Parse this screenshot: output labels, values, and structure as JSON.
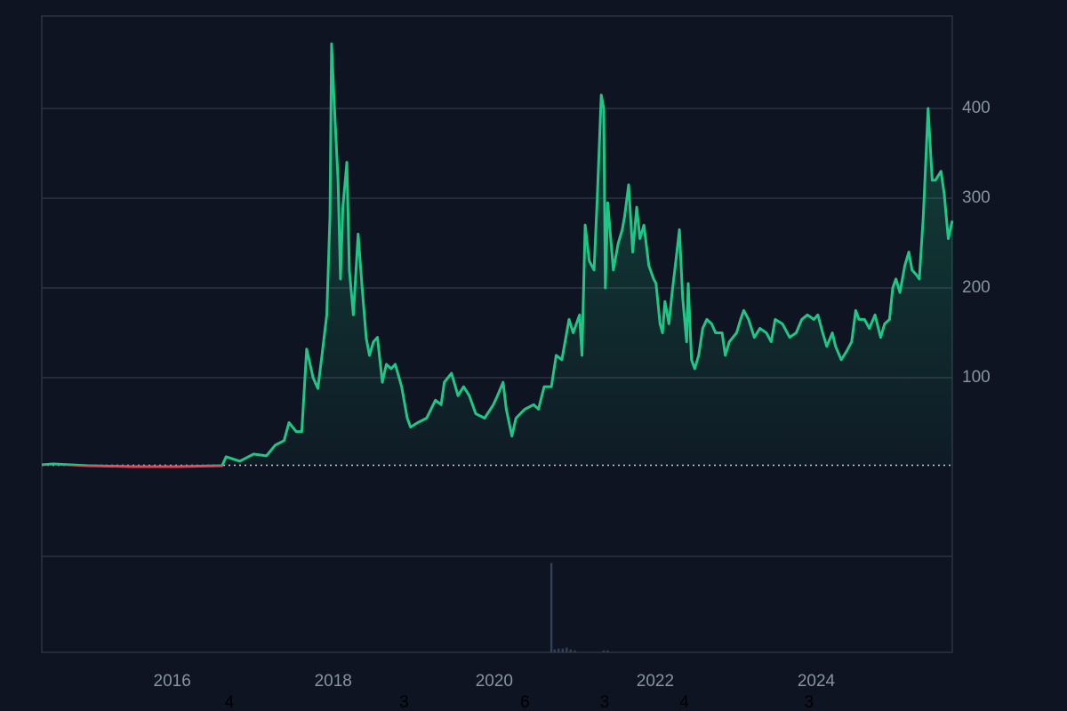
{
  "chart_data": {
    "type": "baseline-line",
    "x": [
      2014.38,
      2014.52,
      2014.96,
      2015.51,
      2016.07,
      2016.62,
      2016.67,
      2016.84,
      2017.01,
      2017.17,
      2017.28,
      2017.39,
      2017.45,
      2017.54,
      2017.61,
      2017.67,
      2017.75,
      2017.81,
      2017.86,
      2017.92,
      2017.96,
      2017.98,
      2018.01,
      2018.06,
      2018.09,
      2018.12,
      2018.17,
      2018.2,
      2018.25,
      2018.31,
      2018.36,
      2018.41,
      2018.45,
      2018.5,
      2018.55,
      2018.61,
      2018.66,
      2018.72,
      2018.77,
      2018.85,
      2018.92,
      2018.96,
      2019.05,
      2019.16,
      2019.27,
      2019.34,
      2019.38,
      2019.47,
      2019.55,
      2019.62,
      2019.69,
      2019.77,
      2019.88,
      2019.99,
      2020.04,
      2020.11,
      2020.15,
      2020.22,
      2020.27,
      2020.38,
      2020.49,
      2020.55,
      2020.62,
      2020.71,
      2020.77,
      2020.84,
      2020.93,
      2020.98,
      2021.06,
      2021.09,
      2021.13,
      2021.18,
      2021.24,
      2021.28,
      2021.33,
      2021.36,
      2021.38,
      2021.41,
      2021.48,
      2021.54,
      2021.59,
      2021.62,
      2021.67,
      2021.72,
      2021.77,
      2021.81,
      2021.86,
      2021.92,
      2021.98,
      2022.01,
      2022.06,
      2022.09,
      2022.12,
      2022.17,
      2022.21,
      2022.25,
      2022.3,
      2022.34,
      2022.39,
      2022.41,
      2022.45,
      2022.49,
      2022.54,
      2022.59,
      2022.64,
      2022.7,
      2022.75,
      2022.83,
      2022.87,
      2022.92,
      2023.01,
      2023.06,
      2023.1,
      2023.16,
      2023.23,
      2023.3,
      2023.38,
      2023.44,
      2023.49,
      2023.58,
      2023.67,
      2023.75,
      2023.82,
      2023.89,
      2023.97,
      2024.02,
      2024.08,
      2024.13,
      2024.2,
      2024.24,
      2024.31,
      2024.38,
      2024.44,
      2024.49,
      2024.53,
      2024.6,
      2024.66,
      2024.73,
      2024.8,
      2024.85,
      2024.91,
      2024.95,
      2024.99,
      2025.04,
      2025.1,
      2025.15,
      2025.19,
      2025.24,
      2025.28,
      2025.33,
      2025.39,
      2025.44,
      2025.48,
      2025.55,
      2025.59,
      2025.64,
      2025.69
    ],
    "values": [
      3,
      4,
      2,
      1,
      1,
      2,
      12,
      7,
      15,
      13,
      25,
      30,
      50,
      40,
      40,
      132,
      100,
      88,
      125,
      170,
      280,
      472,
      410,
      320,
      210,
      290,
      340,
      220,
      170,
      260,
      200,
      144,
      125,
      140,
      145,
      95,
      115,
      110,
      115,
      90,
      55,
      45,
      50,
      55,
      75,
      70,
      95,
      105,
      80,
      90,
      80,
      60,
      55,
      70,
      80,
      95,
      65,
      35,
      55,
      65,
      70,
      65,
      90,
      90,
      125,
      120,
      165,
      150,
      170,
      125,
      270,
      230,
      220,
      300,
      415,
      400,
      200,
      295,
      220,
      250,
      265,
      280,
      315,
      240,
      290,
      255,
      270,
      225,
      210,
      205,
      160,
      150,
      185,
      160,
      195,
      225,
      265,
      190,
      140,
      205,
      120,
      110,
      125,
      155,
      165,
      160,
      150,
      150,
      125,
      140,
      150,
      165,
      175,
      165,
      145,
      155,
      150,
      140,
      165,
      160,
      145,
      150,
      165,
      170,
      165,
      170,
      150,
      135,
      150,
      135,
      120,
      130,
      140,
      175,
      165,
      165,
      155,
      170,
      145,
      160,
      165,
      200,
      210,
      195,
      225,
      240,
      220,
      215,
      210,
      280,
      400,
      320,
      320,
      330,
      305,
      255,
      275
    ],
    "color": "#1ec785",
    "negative_color": "#e0455a",
    "baseline": 2.5,
    "xlim": [
      2014.38,
      2025.69
    ],
    "xticks": [
      2016,
      2018,
      2020,
      2022,
      2024
    ],
    "ylim": [
      -99,
      503
    ],
    "yticks": [
      100,
      200,
      300,
      400
    ],
    "grid": true,
    "volume": {
      "x": [
        2020.71,
        2020.75,
        2020.8,
        2020.85,
        2020.9,
        2020.95,
        2021.0,
        2021.36,
        2021.41
      ],
      "values": [
        93,
        3,
        4,
        4,
        5,
        3,
        2,
        2,
        2
      ],
      "ylim": [
        0,
        100
      ],
      "color": "#34405a"
    },
    "markers": [
      {
        "x": 2016.71,
        "label": "4"
      },
      {
        "x": 2018.88,
        "label": "3"
      },
      {
        "x": 2020.38,
        "label": "6"
      },
      {
        "x": 2021.37,
        "label": "3"
      },
      {
        "x": 2022.36,
        "label": "4"
      },
      {
        "x": 2023.91,
        "label": "3"
      }
    ]
  }
}
